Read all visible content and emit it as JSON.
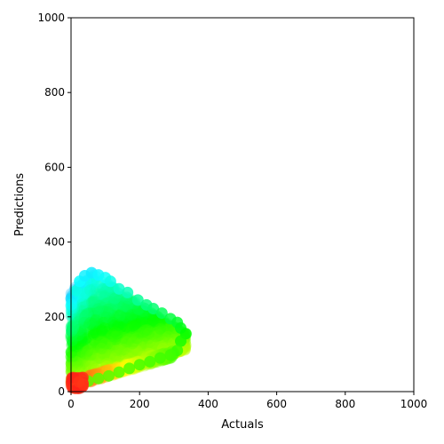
{
  "chart_data": {
    "type": "scatter",
    "title": "",
    "xlabel": "Actuals",
    "ylabel": "Predictions",
    "xlim": [
      0,
      1000
    ],
    "ylim": [
      0,
      1000
    ],
    "xticks": [
      0,
      200,
      400,
      600,
      800,
      1000
    ],
    "yticks": [
      0,
      200,
      400,
      600,
      800,
      1000
    ],
    "grid": false,
    "colormap": "rainbow (red = low, blue = high)",
    "colors": {
      "high": "#1e90ff",
      "mid": "#3fe0d0",
      "low": "#ff2000"
    },
    "outline_points": [
      {
        "x": 15,
        "y": 270
      },
      {
        "x": 25,
        "y": 295
      },
      {
        "x": 40,
        "y": 310
      },
      {
        "x": 60,
        "y": 318
      },
      {
        "x": 80,
        "y": 312
      },
      {
        "x": 100,
        "y": 305
      },
      {
        "x": 115,
        "y": 295
      },
      {
        "x": 140,
        "y": 275
      },
      {
        "x": 165,
        "y": 265
      },
      {
        "x": 195,
        "y": 245
      },
      {
        "x": 220,
        "y": 232
      },
      {
        "x": 240,
        "y": 222
      },
      {
        "x": 265,
        "y": 210
      },
      {
        "x": 290,
        "y": 195
      },
      {
        "x": 310,
        "y": 185
      },
      {
        "x": 320,
        "y": 170
      },
      {
        "x": 335,
        "y": 155
      },
      {
        "x": 320,
        "y": 135
      },
      {
        "x": 310,
        "y": 110
      },
      {
        "x": 290,
        "y": 98
      },
      {
        "x": 260,
        "y": 90
      },
      {
        "x": 230,
        "y": 80
      },
      {
        "x": 200,
        "y": 72
      },
      {
        "x": 170,
        "y": 62
      },
      {
        "x": 140,
        "y": 52
      },
      {
        "x": 110,
        "y": 42
      },
      {
        "x": 80,
        "y": 35
      },
      {
        "x": 50,
        "y": 28
      },
      {
        "x": 30,
        "y": 25
      },
      {
        "x": 15,
        "y": 22
      },
      {
        "x": 5,
        "y": 20
      }
    ]
  }
}
